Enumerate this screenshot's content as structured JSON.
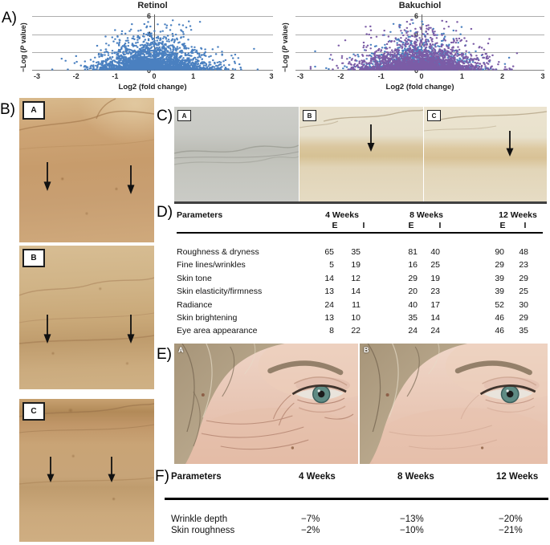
{
  "panel_labels": {
    "a": "A)",
    "b": "B)",
    "c": "C)",
    "d": "D)",
    "e": "E)",
    "f": "F)"
  },
  "chart_data": [
    {
      "type": "scatter",
      "variant": "volcano",
      "title": "Retinol",
      "xlabel": "Log2 (fold change)",
      "ylabel": "−Log (P value)",
      "ylabel_prefix": "−Log (",
      "ylabel_italic": "P",
      "ylabel_suffix": " value)",
      "xlim": [
        -3,
        3
      ],
      "ylim": [
        0,
        6
      ],
      "x_ticks": [
        "-3",
        "-2",
        "-1",
        "0",
        "1",
        "2",
        "3"
      ],
      "y_ticks": [
        "0",
        "2",
        "4",
        "6"
      ],
      "grid": "horizontal-only",
      "legend": "none",
      "point_color": "#4a80c0",
      "layers": [
        {
          "color": "#4a80c0",
          "n": 2600,
          "x_sd": 0.58
        }
      ],
      "cloud_summary": {
        "x_center": 0,
        "x_spread": 0.6,
        "y_bulk": [
          0,
          2.5
        ],
        "y_tail_max": 5.6
      },
      "seed": 42
    },
    {
      "type": "scatter",
      "variant": "volcano",
      "title": "Bakuchiol",
      "xlabel": "Log2 (fold change)",
      "ylabel": "−Log (P value)",
      "ylabel_prefix": "−Log (",
      "ylabel_italic": "P",
      "ylabel_suffix": " value)",
      "xlim": [
        -3,
        3
      ],
      "ylim": [
        0,
        6
      ],
      "x_ticks": [
        "-3",
        "-2",
        "-1",
        "0",
        "1",
        "2",
        "3"
      ],
      "y_ticks": [
        "0",
        "2",
        "4",
        "6"
      ],
      "grid": "horizontal-only",
      "legend": "none",
      "point_color": "#7b5ca6",
      "layers": [
        {
          "color": "#4a80c0",
          "n": 1300,
          "x_sd": 0.5
        },
        {
          "color": "#7b5ca6",
          "n": 2000,
          "x_sd": 0.62
        }
      ],
      "cloud_summary": {
        "x_center": 0,
        "x_spread": 0.65,
        "y_bulk": [
          0,
          2.5
        ],
        "y_tail_max": 5.6
      },
      "seed": 7
    }
  ],
  "histology_column": {
    "images": [
      {
        "label": "A"
      },
      {
        "label": "B"
      },
      {
        "label": "C"
      }
    ]
  },
  "histology_row": {
    "images": [
      {
        "label": "A"
      },
      {
        "label": "B"
      },
      {
        "label": "C"
      }
    ]
  },
  "table_d": {
    "param_header": "Parameters",
    "week_headers": [
      "4 Weeks",
      "8 Weeks",
      "12 Weeks"
    ],
    "sub_headers": [
      "E",
      "I"
    ],
    "rows": [
      {
        "parameter": "Roughness & dryness",
        "values": [
          "65",
          "35",
          "81",
          "40",
          "90",
          "48"
        ]
      },
      {
        "parameter": "Fine lines/wrinkles",
        "values": [
          "5",
          "19",
          "16",
          "25",
          "29",
          "23"
        ]
      },
      {
        "parameter": "Skin tone",
        "values": [
          "14",
          "12",
          "29",
          "19",
          "39",
          "29"
        ]
      },
      {
        "parameter": "Skin elasticity/firmness",
        "values": [
          "13",
          "14",
          "20",
          "23",
          "39",
          "25"
        ]
      },
      {
        "parameter": "Radiance",
        "values": [
          "24",
          "11",
          "40",
          "17",
          "52",
          "30"
        ]
      },
      {
        "parameter": "Skin brightening",
        "values": [
          "13",
          "10",
          "35",
          "14",
          "46",
          "29"
        ]
      },
      {
        "parameter": "Eye area appearance",
        "values": [
          "8",
          "22",
          "24",
          "24",
          "46",
          "35"
        ]
      }
    ]
  },
  "photos": {
    "images": [
      {
        "label": "A"
      },
      {
        "label": "B"
      }
    ]
  },
  "table_f": {
    "param_header": "Parameters",
    "week_headers": [
      "4 Weeks",
      "8 Weeks",
      "12 Weeks"
    ],
    "rows": [
      {
        "parameter": "Wrinkle depth",
        "values": [
          "−7%",
          "−13%",
          "−20%"
        ]
      },
      {
        "parameter": "Skin roughness",
        "values": [
          "−2%",
          "−10%",
          "−21%"
        ]
      }
    ]
  }
}
